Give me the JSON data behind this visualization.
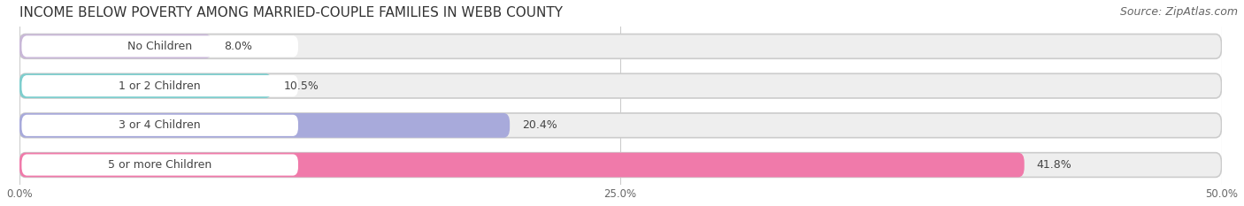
{
  "title": "INCOME BELOW POVERTY AMONG MARRIED-COUPLE FAMILIES IN WEBB COUNTY",
  "source": "Source: ZipAtlas.com",
  "categories": [
    "No Children",
    "1 or 2 Children",
    "3 or 4 Children",
    "5 or more Children"
  ],
  "values": [
    8.0,
    10.5,
    20.4,
    41.8
  ],
  "bar_colors": [
    "#c9b8d8",
    "#7ecece",
    "#a8aadb",
    "#f07aaa"
  ],
  "background_color": "#ffffff",
  "bar_bg_color": "#e8e8e8",
  "xlim": [
    0,
    50
  ],
  "xticks": [
    0.0,
    25.0,
    50.0
  ],
  "xtick_labels": [
    "0.0%",
    "25.0%",
    "50.0%"
  ],
  "title_fontsize": 11,
  "source_fontsize": 9,
  "label_fontsize": 9,
  "value_fontsize": 9,
  "bar_height": 0.62,
  "bar_gap": 0.18
}
